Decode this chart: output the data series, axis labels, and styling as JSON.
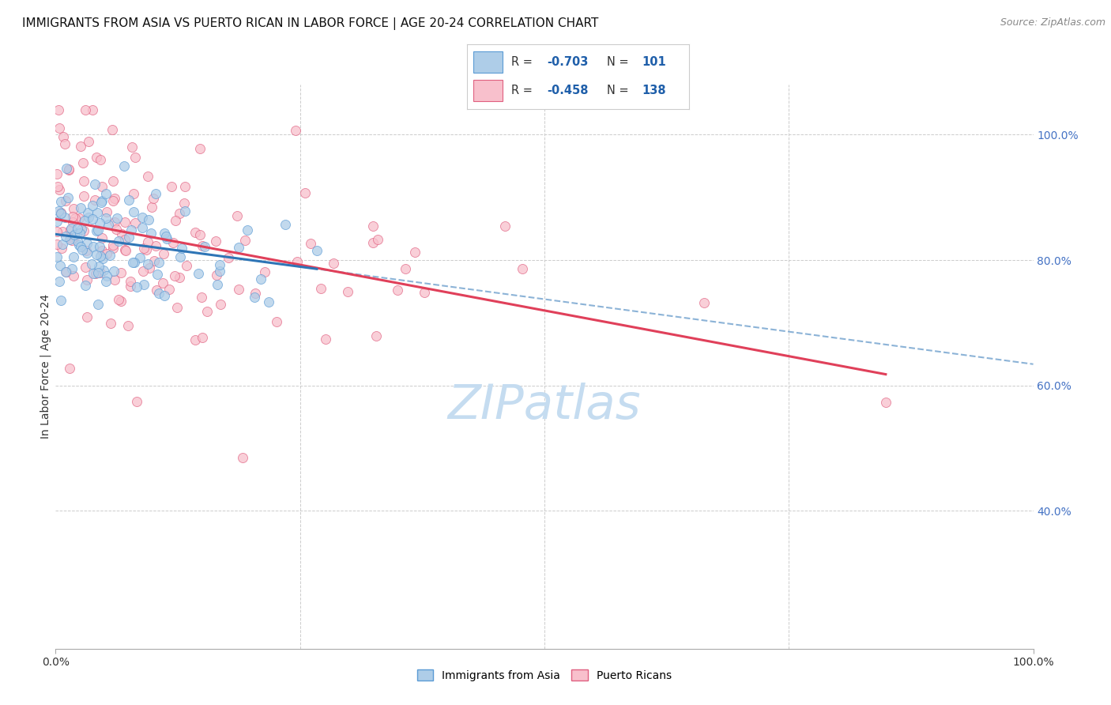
{
  "title": "IMMIGRANTS FROM ASIA VS PUERTO RICAN IN LABOR FORCE | AGE 20-24 CORRELATION CHART",
  "source": "Source: ZipAtlas.com",
  "ylabel": "In Labor Force | Age 20-24",
  "ytick_labels": [
    "40.0%",
    "60.0%",
    "80.0%",
    "100.0%"
  ],
  "ytick_vals": [
    0.4,
    0.6,
    0.8,
    1.0
  ],
  "xtick_labels": [
    "0.0%",
    "100.0%"
  ],
  "xtick_vals": [
    0.0,
    1.0
  ],
  "series": [
    {
      "name": "Immigrants from Asia",
      "R": -0.703,
      "N": 101,
      "color": "#aecde8",
      "edge_color": "#5b9bd5",
      "line_color": "#2e75b6",
      "intercept": 0.845,
      "slope": -0.245
    },
    {
      "name": "Puerto Ricans",
      "R": -0.458,
      "N": 138,
      "color": "#f8c0cc",
      "edge_color": "#e06080",
      "line_color": "#e0405a",
      "intercept": 0.865,
      "slope": -0.265
    }
  ],
  "xlim": [
    0.0,
    1.0
  ],
  "ylim": [
    0.18,
    1.08
  ],
  "background_color": "#ffffff",
  "grid_color": "#cccccc",
  "watermark": "ZIPatlas",
  "watermark_color": "#c5dcf0",
  "title_fontsize": 11,
  "source_fontsize": 9,
  "ytick_color": "#4472c4",
  "legend_color": "#1f5faa"
}
